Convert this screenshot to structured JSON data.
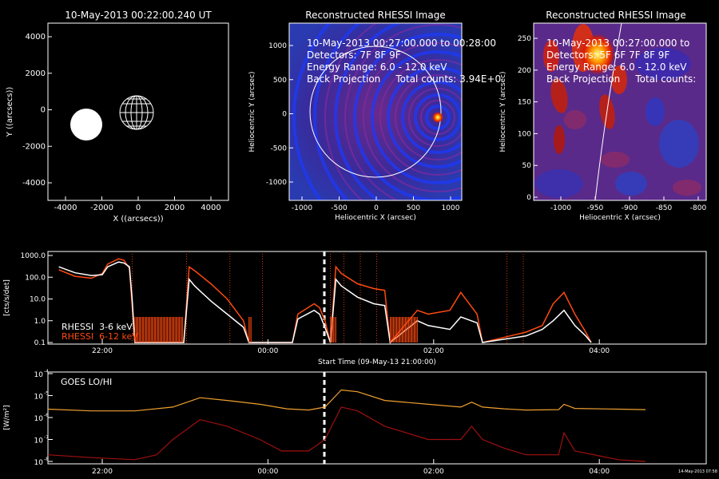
{
  "panels": {
    "locator": {
      "title": "10-May-2013 00:22:00.240 UT",
      "xlabel": "X ((arcsecs))",
      "ylabel": "Y ((arcsecs))",
      "xticks": [
        "-4000",
        "-2000",
        "0",
        "2000",
        "4000"
      ],
      "yticks": [
        "4000",
        "2000",
        "0",
        "-2000",
        "-4000"
      ]
    },
    "rhessi_full": {
      "title": "Reconstructed RHESSI Image",
      "xlabel": "Heliocentric X (arcsec)",
      "ylabel": "Heliocentric Y (arcsec)",
      "xticks": [
        "-1000",
        "-500",
        "0",
        "500",
        "1000"
      ],
      "yticks": [
        "1000",
        "500",
        "0",
        "-500",
        "-1000"
      ],
      "annot": [
        "10-May-2013 00:27:00.000 to 00:28:00",
        "Detectors: 7F 8F 9F",
        "Energy Range: 6.0 - 12.0 keV",
        "Back Projection     Total counts: 3.94E+0"
      ]
    },
    "rhessi_zoom": {
      "title": "Reconstructed RHESSI Image",
      "xlabel": "Heliocentric X (arcsec)",
      "ylabel": "Heliocentric Y (arcsec)",
      "xticks": [
        "-1000",
        "-950",
        "-900",
        "-850",
        "-800"
      ],
      "yticks": [
        "250",
        "200",
        "150",
        "100",
        "50",
        "0"
      ],
      "annot": [
        "10-May-2013 00:27:00.000 to",
        "Detectors: 5F 6F 7F 8F 9F",
        "Energy Range: 6.0 - 12.0 keV",
        "Back Projection     Total counts:"
      ]
    }
  },
  "lightcurve": {
    "ylabel": "[cts/s/det]",
    "yticks": [
      "1000.0",
      "100.0",
      "10.0",
      "1.0",
      "0.1"
    ],
    "xticks": [
      "22:00",
      "00:00",
      "02:00",
      "04:00"
    ],
    "xlabel": "Start Time (09-May-13 21:00:00)",
    "legend": [
      "RHESSI  3-6 keV",
      "RHESSI  6-12 keV"
    ]
  },
  "goes": {
    "ylabel": "[W/m²]",
    "ytick_base": [
      "10",
      "10",
      "10",
      "10"
    ],
    "ytick_exp": [
      "-4",
      "-5",
      "-6",
      "-7",
      "-8"
    ],
    "xticks": [
      "22:00",
      "00:00",
      "02:00",
      "04:00"
    ],
    "legend": "GOES LO/HI",
    "stamp": "14-May-2013 07:58"
  },
  "colors": {
    "rhessi_low": "#ffffff",
    "rhessi_high": "#ff4a10",
    "goes_lo": "#f0a030",
    "goes_hi": "#a01010",
    "frame": "#ffffff",
    "background": "#000000"
  },
  "chart_data": [
    {
      "type": "line",
      "title": "",
      "ylabel": "[cts/s/det]",
      "xlabel": "Start Time (09-May-13 21:00:00)",
      "x_unit": "hours since 09-May-13 21:00",
      "ylim": [
        0.1,
        1000
      ],
      "yscale": "log",
      "series": [
        {
          "name": "RHESSI  3-6 keV",
          "color": "#ffffff",
          "points": [
            [
              0.2,
              300
            ],
            [
              0.5,
              160
            ],
            [
              0.8,
              120
            ],
            [
              1.0,
              130
            ],
            [
              1.1,
              300
            ],
            [
              1.3,
              500
            ],
            [
              1.4,
              450
            ],
            [
              1.5,
              300
            ],
            [
              1.55,
              10
            ],
            [
              1.6,
              0.1
            ],
            [
              2.5,
              0.1
            ],
            [
              2.6,
              80
            ],
            [
              2.7,
              40
            ],
            [
              3.0,
              8
            ],
            [
              3.3,
              2
            ],
            [
              3.6,
              0.5
            ],
            [
              3.7,
              0.1
            ],
            [
              4.5,
              0.1
            ],
            [
              4.6,
              1.2
            ],
            [
              4.9,
              3
            ],
            [
              5.0,
              2
            ],
            [
              5.1,
              0.5
            ],
            [
              5.2,
              0.1
            ],
            [
              5.3,
              80
            ],
            [
              5.4,
              40
            ],
            [
              5.7,
              12
            ],
            [
              6.0,
              6
            ],
            [
              6.2,
              5
            ],
            [
              6.3,
              0.1
            ],
            [
              6.8,
              1
            ],
            [
              7.0,
              0.6
            ],
            [
              7.4,
              0.4
            ],
            [
              7.6,
              1.5
            ],
            [
              7.9,
              0.8
            ],
            [
              8.0,
              0.1
            ],
            [
              8.8,
              0.2
            ],
            [
              9.1,
              0.4
            ],
            [
              9.3,
              1.0
            ],
            [
              9.5,
              3
            ],
            [
              9.7,
              0.6
            ],
            [
              9.9,
              0.2
            ],
            [
              10.0,
              0.1
            ]
          ]
        },
        {
          "name": "RHESSI  6-12 keV",
          "color": "#ff4a10",
          "points": [
            [
              0.2,
              220
            ],
            [
              0.5,
              110
            ],
            [
              0.8,
              90
            ],
            [
              1.0,
              150
            ],
            [
              1.1,
              400
            ],
            [
              1.3,
              700
            ],
            [
              1.4,
              600
            ],
            [
              1.5,
              250
            ],
            [
              1.55,
              5
            ],
            [
              1.6,
              0.1
            ],
            [
              2.5,
              0.1
            ],
            [
              2.6,
              300
            ],
            [
              2.7,
              200
            ],
            [
              3.0,
              50
            ],
            [
              3.3,
              10
            ],
            [
              3.6,
              1
            ],
            [
              3.7,
              0.1
            ],
            [
              4.5,
              0.1
            ],
            [
              4.6,
              2
            ],
            [
              4.9,
              6
            ],
            [
              5.0,
              4
            ],
            [
              5.1,
              1
            ],
            [
              5.2,
              0.1
            ],
            [
              5.3,
              300
            ],
            [
              5.4,
              150
            ],
            [
              5.7,
              50
            ],
            [
              6.0,
              30
            ],
            [
              6.2,
              25
            ],
            [
              6.3,
              0.1
            ],
            [
              6.8,
              3
            ],
            [
              7.0,
              2
            ],
            [
              7.4,
              3
            ],
            [
              7.6,
              20
            ],
            [
              7.9,
              2
            ],
            [
              8.0,
              0.1
            ],
            [
              8.8,
              0.3
            ],
            [
              9.1,
              0.6
            ],
            [
              9.3,
              6
            ],
            [
              9.5,
              20
            ],
            [
              9.7,
              2
            ],
            [
              9.9,
              0.3
            ],
            [
              10.0,
              0.1
            ]
          ]
        }
      ]
    },
    {
      "type": "line",
      "title": "",
      "ylabel": "[W/m²]",
      "x_unit": "hours since 09-May-13 21:00",
      "ylim": [
        1e-08,
        0.0001
      ],
      "yscale": "log",
      "series": [
        {
          "name": "GOES LO",
          "color": "#f0a030",
          "points": [
            [
              0.0,
              2.4e-06
            ],
            [
              0.8,
              2e-06
            ],
            [
              1.6,
              2e-06
            ],
            [
              2.3,
              3e-06
            ],
            [
              2.8,
              8e-06
            ],
            [
              3.3,
              6e-06
            ],
            [
              3.9,
              4e-06
            ],
            [
              4.4,
              2.5e-06
            ],
            [
              4.8,
              2.2e-06
            ],
            [
              5.1,
              3e-06
            ],
            [
              5.4,
              1.8e-05
            ],
            [
              5.7,
              1.5e-05
            ],
            [
              6.2,
              6e-06
            ],
            [
              7.0,
              4e-06
            ],
            [
              7.6,
              3e-06
            ],
            [
              7.8,
              5e-06
            ],
            [
              8.0,
              3e-06
            ],
            [
              8.4,
              2.5e-06
            ],
            [
              8.8,
              2.2e-06
            ],
            [
              9.4,
              2.3e-06
            ],
            [
              9.5,
              4e-06
            ],
            [
              9.7,
              2.6e-06
            ],
            [
              10.5,
              2.4e-06
            ],
            [
              11.0,
              2.3e-06
            ]
          ]
        },
        {
          "name": "GOES HI",
          "color": "#a01010",
          "points": [
            [
              0.0,
              2e-08
            ],
            [
              0.8,
              1.5e-08
            ],
            [
              1.6,
              1.2e-08
            ],
            [
              2.0,
              2e-08
            ],
            [
              2.3,
              1e-07
            ],
            [
              2.8,
              8e-07
            ],
            [
              3.3,
              4e-07
            ],
            [
              3.9,
              1e-07
            ],
            [
              4.3,
              3e-08
            ],
            [
              4.8,
              3e-08
            ],
            [
              5.1,
              1e-07
            ],
            [
              5.4,
              3e-06
            ],
            [
              5.7,
              2e-06
            ],
            [
              6.2,
              4e-07
            ],
            [
              7.0,
              1e-07
            ],
            [
              7.6,
              1e-07
            ],
            [
              7.8,
              4e-07
            ],
            [
              8.0,
              1e-07
            ],
            [
              8.4,
              4e-08
            ],
            [
              8.8,
              2e-08
            ],
            [
              9.4,
              2e-08
            ],
            [
              9.5,
              2e-07
            ],
            [
              9.7,
              3e-08
            ],
            [
              10.5,
              1.2e-08
            ],
            [
              11.0,
              1e-08
            ]
          ]
        }
      ]
    }
  ]
}
